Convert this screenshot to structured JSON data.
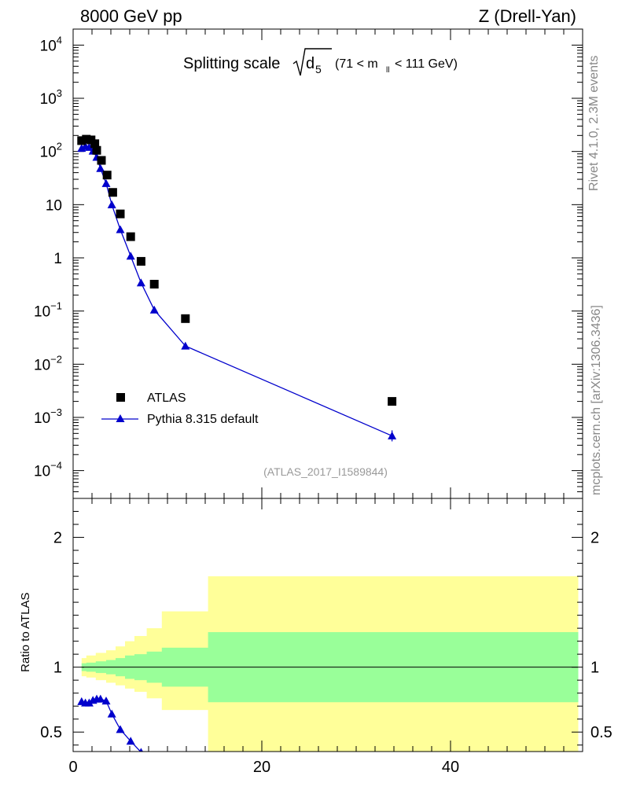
{
  "header": {
    "left_label": "8000 GeV pp",
    "right_label": "Z (Drell-Yan)"
  },
  "side": {
    "rivet_label": "Rivet 4.1.0,  2.3M events",
    "mcplots_label": "mcplots.cern.ch [arXiv:1306.3436]"
  },
  "chart_data": [
    {
      "type": "scatter",
      "panel": "main",
      "title_prefix": "Splitting scale",
      "title_symbol": "d",
      "title_subscript": "5",
      "title_range_left": "(71 < m",
      "title_range_sub": "ll",
      "title_range_right": "< 111 GeV)",
      "analysis_id": "(ATLAS_2017_I1589844)",
      "yscale": "log",
      "ylim": [
        3e-05,
        20000
      ],
      "xlim": [
        0,
        54
      ],
      "ytick_labels": [
        {
          "value": 10000,
          "base": "10",
          "exp": "4"
        },
        {
          "value": 1000,
          "base": "10",
          "exp": "3"
        },
        {
          "value": 100,
          "base": "10",
          "exp": "2"
        },
        {
          "value": 10,
          "base": "10",
          "exp": ""
        },
        {
          "value": 1,
          "base": "1",
          "exp": ""
        },
        {
          "value": 0.1,
          "base": "10",
          "exp": "−1"
        },
        {
          "value": 0.01,
          "base": "10",
          "exp": "−2"
        },
        {
          "value": 0.001,
          "base": "10",
          "exp": "−3"
        },
        {
          "value": 0.0001,
          "base": "10",
          "exp": "−4"
        }
      ],
      "legend_position": "lower-left",
      "series": [
        {
          "name": "ATLAS",
          "marker": "square",
          "color": "#000000",
          "x": [
            0.9,
            1.4,
            1.9,
            2.3,
            2.5,
            3.0,
            3.6,
            4.2,
            5.0,
            6.1,
            7.2,
            8.6,
            11.9,
            33.8
          ],
          "y": [
            160,
            170,
            165,
            140,
            105,
            68,
            36,
            17,
            6.7,
            2.5,
            0.86,
            0.32,
            0.072,
            0.002
          ]
        },
        {
          "name": "Pythia 8.315 default",
          "marker": "triangle",
          "color": "#0000cc",
          "line": true,
          "x": [
            0.9,
            1.3,
            1.7,
            2.1,
            2.5,
            2.9,
            3.5,
            4.1,
            5.0,
            6.1,
            7.2,
            8.6,
            11.9,
            33.8
          ],
          "y": [
            115,
            125,
            120,
            102,
            78,
            48,
            25,
            10,
            3.4,
            1.08,
            0.34,
            0.105,
            0.022,
            0.00045
          ]
        }
      ]
    },
    {
      "type": "area",
      "panel": "ratio",
      "ylabel": "Ratio to ATLAS",
      "xlim": [
        0,
        54
      ],
      "ylim": [
        0.35,
        2.3
      ],
      "ytick_labels": [
        "2",
        "1",
        "0.5"
      ],
      "yticks": [
        2,
        1,
        0.5
      ],
      "xtick_labels": [
        "0",
        "20",
        "40"
      ],
      "xticks": [
        0,
        20,
        40
      ],
      "colors": {
        "stat": "#99ff99",
        "total": "#ffff99",
        "ref_line": "#000000",
        "mc": "#0000cc"
      },
      "bins": [
        {
          "x0": 0.9,
          "x1": 1.4,
          "stat": 0.97,
          "tot_lo": 0.93,
          "tot_hi": 1.07
        },
        {
          "x0": 1.4,
          "x1": 2.4,
          "stat": 0.965,
          "tot_lo": 0.92,
          "tot_hi": 1.09
        },
        {
          "x0": 2.4,
          "x1": 3.5,
          "stat": 0.955,
          "tot_lo": 0.9,
          "tot_hi": 1.11
        },
        {
          "x0": 3.5,
          "x1": 4.5,
          "stat": 0.945,
          "tot_lo": 0.88,
          "tot_hi": 1.13
        },
        {
          "x0": 4.5,
          "x1": 5.5,
          "stat": 0.93,
          "tot_lo": 0.86,
          "tot_hi": 1.16
        },
        {
          "x0": 5.5,
          "x1": 6.5,
          "stat": 0.91,
          "tot_lo": 0.835,
          "tot_hi": 1.2
        },
        {
          "x0": 6.5,
          "x1": 7.8,
          "stat": 0.9,
          "tot_lo": 0.81,
          "tot_hi": 1.24
        },
        {
          "x0": 7.8,
          "x1": 9.4,
          "stat": 0.88,
          "tot_lo": 0.76,
          "tot_hi": 1.3
        },
        {
          "x0": 9.4,
          "x1": 14.3,
          "stat": 0.85,
          "tot_lo": 0.67,
          "tot_hi": 1.43
        },
        {
          "x0": 14.3,
          "x1": 53.5,
          "stat": 0.73,
          "tot_lo": 0.35,
          "tot_hi": 1.7
        }
      ],
      "mc_ratio": {
        "x": [
          0.9,
          1.3,
          1.7,
          2.1,
          2.5,
          2.9,
          3.5,
          4.1,
          5.0,
          6.1,
          7.2
        ],
        "y": [
          0.735,
          0.725,
          0.725,
          0.745,
          0.755,
          0.755,
          0.74,
          0.64,
          0.52,
          0.43,
          0.345
        ]
      }
    }
  ]
}
